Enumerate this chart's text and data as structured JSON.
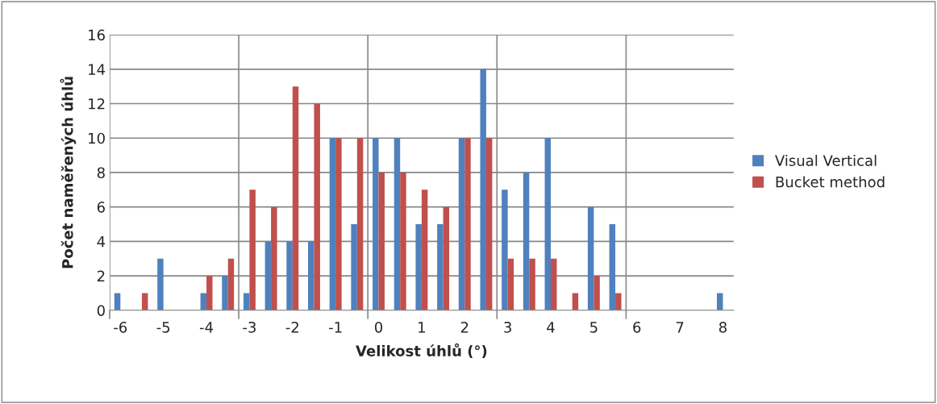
{
  "chart_data": {
    "type": "bar",
    "xlabel": "Velikost úhlů (°)",
    "ylabel": "Počet naměřených úhlů",
    "categories": [
      "-6",
      null,
      "-5",
      null,
      "-4",
      null,
      "-3",
      null,
      "-2",
      null,
      "-1",
      null,
      "0",
      null,
      "1",
      null,
      "2",
      null,
      "3",
      null,
      "4",
      null,
      "5",
      null,
      "6",
      null,
      "7",
      null,
      "8"
    ],
    "series": [
      {
        "name": "Visual Vertical",
        "color": "#4f81bd",
        "values": [
          1,
          0,
          3,
          0,
          1,
          2,
          1,
          4,
          4,
          4,
          10,
          5,
          10,
          10,
          5,
          5,
          10,
          14,
          7,
          8,
          10,
          0,
          6,
          5,
          0,
          0,
          0,
          0,
          1
        ]
      },
      {
        "name": "Bucket method",
        "color": "#c0504d",
        "values": [
          0,
          1,
          0,
          0,
          2,
          3,
          7,
          6,
          13,
          12,
          10,
          10,
          8,
          8,
          7,
          6,
          10,
          10,
          3,
          3,
          3,
          1,
          2,
          1,
          0,
          0,
          0,
          0,
          0
        ]
      }
    ],
    "ylim": [
      0,
      16
    ],
    "yticks": [
      0,
      2,
      4,
      6,
      8,
      10,
      12,
      14,
      16
    ],
    "grid": true,
    "legend": "right"
  }
}
